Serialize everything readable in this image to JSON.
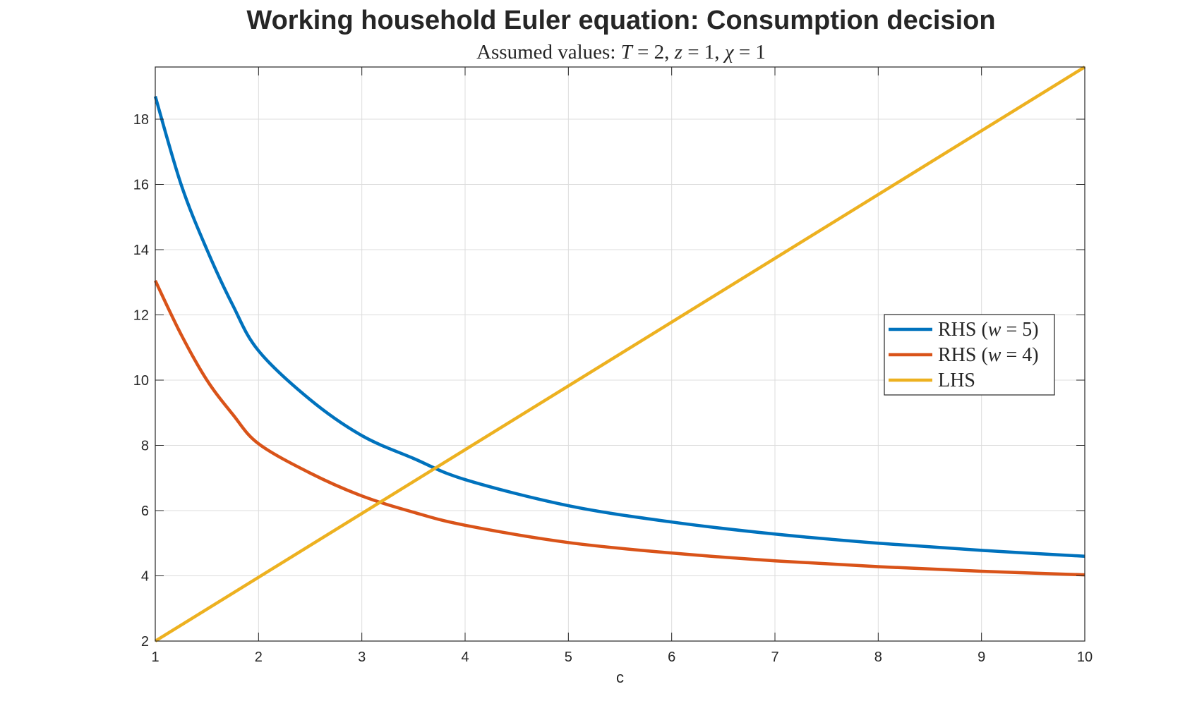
{
  "chart_data": {
    "type": "line",
    "title": "Working household Euler equation: Consumption decision",
    "subtitle": {
      "prefix": "Assumed values: ",
      "T_sym": "T",
      "T_val": " = 2, ",
      "z_sym": "z",
      "z_val": " = 1, ",
      "chi_sym": "χ",
      "chi_val": " = 1"
    },
    "xlabel": "c",
    "ylabel": "",
    "xlim": [
      1,
      10
    ],
    "ylim": [
      2,
      19.6
    ],
    "xticks": [
      1,
      2,
      3,
      4,
      5,
      6,
      7,
      8,
      9,
      10
    ],
    "yticks": [
      2,
      4,
      6,
      8,
      10,
      12,
      14,
      16,
      18
    ],
    "grid": true,
    "legend_position": "right",
    "series": [
      {
        "legend": {
          "prefix": "RHS (",
          "sym": "w",
          "suffix": " = 5)"
        },
        "color": "#0072bd",
        "x": [
          1,
          1.25,
          1.5,
          1.75,
          2,
          2.5,
          3,
          3.5,
          4,
          5,
          6,
          7,
          8,
          9,
          10
        ],
        "y": [
          18.7,
          16.0,
          14.0,
          12.3,
          10.9,
          9.4,
          8.3,
          7.6,
          6.95,
          6.15,
          5.65,
          5.28,
          5.0,
          4.78,
          4.6
        ]
      },
      {
        "legend": {
          "prefix": "RHS (",
          "sym": "w",
          "suffix": " = 4)"
        },
        "color": "#d95319",
        "x": [
          1,
          1.25,
          1.5,
          1.75,
          2,
          2.5,
          3,
          3.5,
          4,
          5,
          6,
          7,
          8,
          9,
          10
        ],
        "y": [
          13.05,
          11.4,
          10.0,
          8.95,
          8.05,
          7.15,
          6.45,
          5.95,
          5.55,
          5.02,
          4.7,
          4.46,
          4.28,
          4.14,
          4.03
        ]
      },
      {
        "legend": {
          "prefix": "LHS",
          "sym": "",
          "suffix": ""
        },
        "color": "#edb120",
        "x": [
          1,
          10
        ],
        "y": [
          2.0,
          19.6
        ]
      }
    ]
  }
}
